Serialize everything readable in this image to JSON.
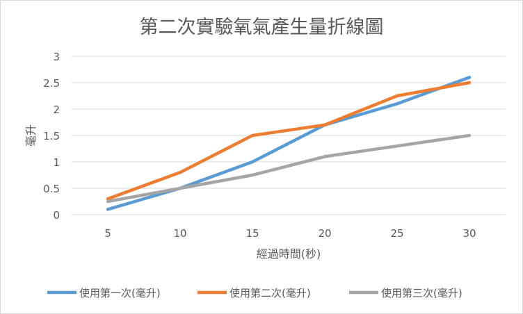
{
  "chart_data": {
    "type": "line",
    "title": "第二次實驗氧氣產生量折線圖",
    "xlabel": "經過時間(秒)",
    "ylabel": "毫升",
    "categories": [
      "5",
      "10",
      "15",
      "20",
      "25",
      "30"
    ],
    "ylim": [
      0,
      3
    ],
    "yticks": [
      "0",
      "0.5",
      "1",
      "1.5",
      "2",
      "2.5",
      "3"
    ],
    "grid": true,
    "legend": "bottom",
    "series": [
      {
        "name": "使用第一次(毫升)",
        "color": "#5b9bd5",
        "values": [
          0.1,
          0.5,
          1.0,
          1.7,
          2.1,
          2.6
        ]
      },
      {
        "name": "使用第二次(毫升)",
        "color": "#ed7d31",
        "values": [
          0.3,
          0.8,
          1.5,
          1.7,
          2.25,
          2.5
        ]
      },
      {
        "name": "使用第三次(毫升)",
        "color": "#a5a5a5",
        "values": [
          0.25,
          0.5,
          0.75,
          1.1,
          1.3,
          1.5
        ]
      }
    ]
  }
}
